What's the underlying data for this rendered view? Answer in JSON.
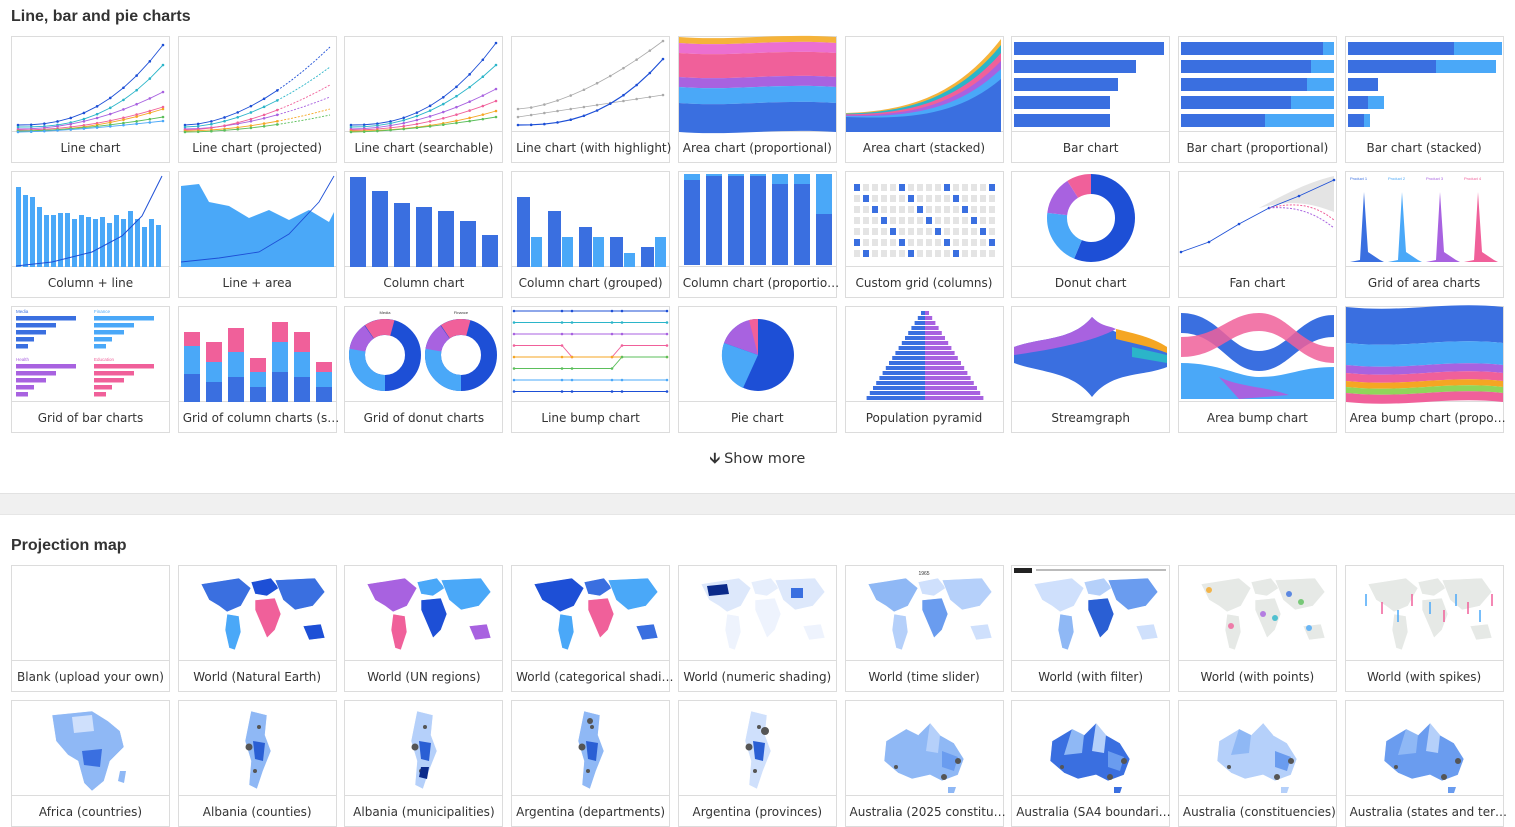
{
  "sections": {
    "charts": {
      "title": "Line, bar and pie charts",
      "show_more": "Show more",
      "items": [
        {
          "label": "Line chart",
          "thumb": "line"
        },
        {
          "label": "Line chart (projected)",
          "thumb": "line-projected"
        },
        {
          "label": "Line chart (searchable)",
          "thumb": "line-searchable"
        },
        {
          "label": "Line chart (with highlight)",
          "thumb": "line-highlight"
        },
        {
          "label": "Area chart (proportional)",
          "thumb": "area-prop"
        },
        {
          "label": "Area chart (stacked)",
          "thumb": "area-stacked"
        },
        {
          "label": "Bar chart",
          "thumb": "bar"
        },
        {
          "label": "Bar chart (proportional)",
          "thumb": "bar-prop"
        },
        {
          "label": "Bar chart (stacked)",
          "thumb": "bar-stacked"
        },
        {
          "label": "Column + line",
          "thumb": "column-line"
        },
        {
          "label": "Line + area",
          "thumb": "line-area"
        },
        {
          "label": "Column chart",
          "thumb": "column"
        },
        {
          "label": "Column chart (grouped)",
          "thumb": "column-grouped"
        },
        {
          "label": "Column chart (proportio…",
          "thumb": "column-prop"
        },
        {
          "label": "Custom grid (columns)",
          "thumb": "custom-grid"
        },
        {
          "label": "Donut chart",
          "thumb": "donut"
        },
        {
          "label": "Fan chart",
          "thumb": "fan"
        },
        {
          "label": "Grid of area charts",
          "thumb": "grid-area"
        },
        {
          "label": "Grid of bar charts",
          "thumb": "grid-bar"
        },
        {
          "label": "Grid of column charts (s…",
          "thumb": "grid-column"
        },
        {
          "label": "Grid of donut charts",
          "thumb": "grid-donut"
        },
        {
          "label": "Line bump chart",
          "thumb": "line-bump"
        },
        {
          "label": "Pie chart",
          "thumb": "pie"
        },
        {
          "label": "Population pyramid",
          "thumb": "pyramid"
        },
        {
          "label": "Streamgraph",
          "thumb": "stream"
        },
        {
          "label": "Area bump chart",
          "thumb": "area-bump"
        },
        {
          "label": "Area bump chart (propo…",
          "thumb": "area-bump-prop"
        }
      ]
    },
    "maps": {
      "title": "Projection map",
      "items": [
        {
          "label": "Blank (upload your own)",
          "thumb": "blank"
        },
        {
          "label": "World (Natural Earth)",
          "thumb": "world-ne"
        },
        {
          "label": "World (UN regions)",
          "thumb": "world-un"
        },
        {
          "label": "World (categorical shadi…",
          "thumb": "world-cat"
        },
        {
          "label": "World (numeric shading)",
          "thumb": "world-num"
        },
        {
          "label": "World (time slider)",
          "thumb": "world-time"
        },
        {
          "label": "World (with filter)",
          "thumb": "world-filter"
        },
        {
          "label": "World (with points)",
          "thumb": "world-points"
        },
        {
          "label": "World (with spikes)",
          "thumb": "world-spikes"
        },
        {
          "label": "Africa (countries)",
          "thumb": "africa"
        },
        {
          "label": "Albania (counties)",
          "thumb": "albania-c"
        },
        {
          "label": "Albania (municipalities)",
          "thumb": "albania-m"
        },
        {
          "label": "Argentina (departments)",
          "thumb": "argentina-d"
        },
        {
          "label": "Argentina (provinces)",
          "thumb": "argentina-p"
        },
        {
          "label": "Australia (2025 constitu…",
          "thumb": "australia-1"
        },
        {
          "label": "Australia (SA4 boundari…",
          "thumb": "australia-2"
        },
        {
          "label": "Australia (constituencies)",
          "thumb": "australia-3"
        },
        {
          "label": "Australia (states and ter…",
          "thumb": "australia-4"
        }
      ]
    }
  },
  "thumb_text": {
    "grid_bar": [
      "Media",
      "Finance",
      "Health",
      "Education"
    ],
    "grid_area": [
      "Product 1",
      "Product 2",
      "Product 3",
      "Product 4"
    ],
    "grid_donut": [
      "Media",
      "Finance"
    ],
    "world_time": "1965"
  },
  "colors": {
    "blue": "#3a6fe0",
    "blue_dark": "#1d4fd6",
    "blue_light": "#4aa8f8",
    "pink": "#f0609a",
    "purple": "#a862e0",
    "teal": "#2bb5c9",
    "orange": "#f5a623",
    "green": "#5bbf5b",
    "grey": "#999999"
  }
}
